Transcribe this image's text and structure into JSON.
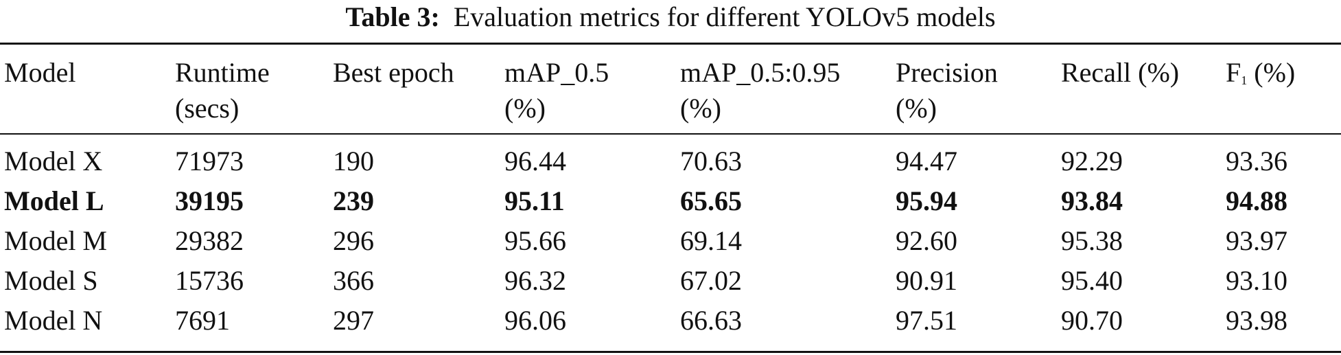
{
  "caption": {
    "label": "Table 3:",
    "text": "Evaluation metrics for different YOLOv5 models"
  },
  "table": {
    "headers": {
      "model": "Model",
      "runtime": "Runtime\n(secs)",
      "best_epoch": "Best epoch",
      "map50": "mAP_0.5\n(%)",
      "map50_95": "mAP_0.5:0.95\n(%)",
      "precision": "Precision\n(%)",
      "recall": "Recall (%)",
      "f1_main": "F",
      "f1_sub": "1",
      "f1_tail": " (%)"
    },
    "rows": [
      {
        "model": "Model X",
        "runtime": "71973",
        "best_epoch": "190",
        "map50": "96.44",
        "map50_95": "70.63",
        "precision": "94.47",
        "recall": "92.29",
        "f1": "93.36",
        "bold": false
      },
      {
        "model": "Model L",
        "runtime": "39195",
        "best_epoch": "239",
        "map50": "95.11",
        "map50_95": "65.65",
        "precision": "95.94",
        "recall": "93.84",
        "f1": "94.88",
        "bold": true
      },
      {
        "model": "Model M",
        "runtime": "29382",
        "best_epoch": "296",
        "map50": "95.66",
        "map50_95": "69.14",
        "precision": "92.60",
        "recall": "95.38",
        "f1": "93.97",
        "bold": false
      },
      {
        "model": "Model S",
        "runtime": "15736",
        "best_epoch": "366",
        "map50": "96.32",
        "map50_95": "67.02",
        "precision": "90.91",
        "recall": "95.40",
        "f1": "93.10",
        "bold": false
      },
      {
        "model": "Model N",
        "runtime": "7691",
        "best_epoch": "297",
        "map50": "96.06",
        "map50_95": "66.63",
        "precision": "97.51",
        "recall": "90.70",
        "f1": "93.98",
        "bold": false
      }
    ]
  }
}
